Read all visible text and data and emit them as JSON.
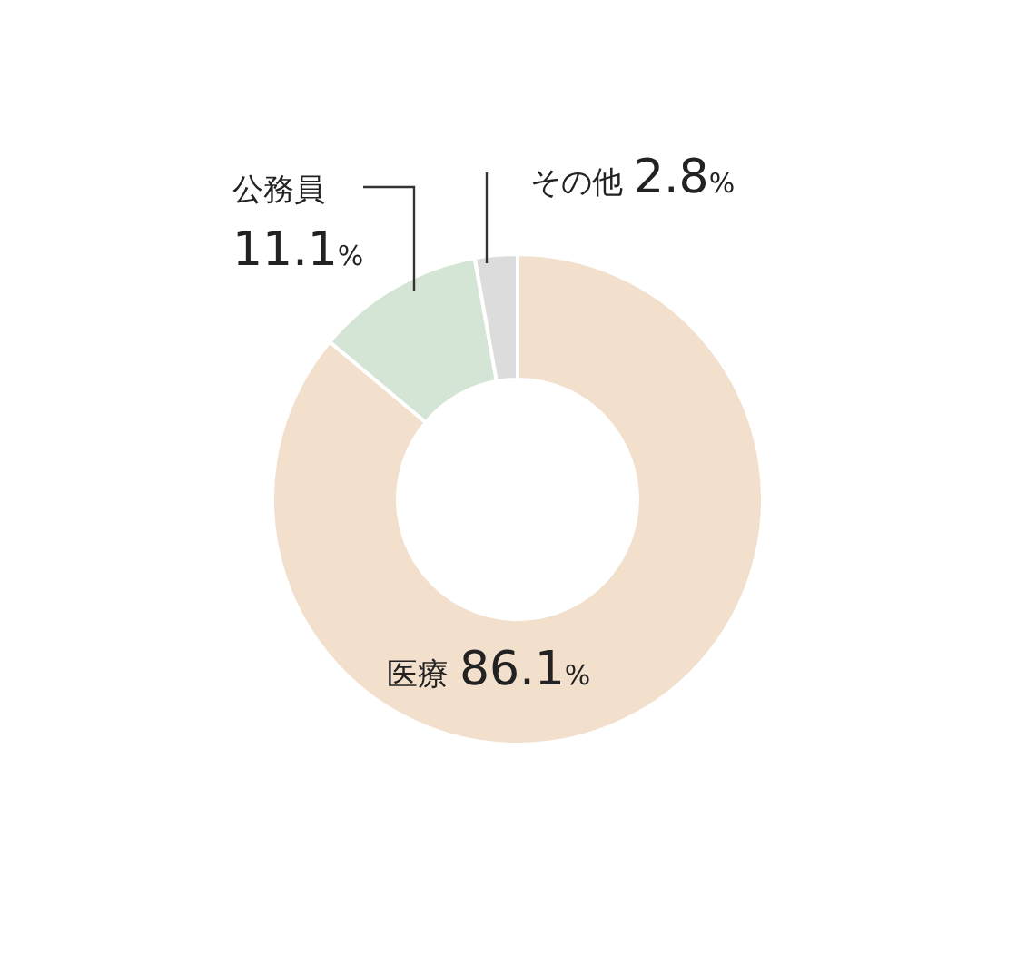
{
  "chart_data": {
    "type": "donut",
    "categories": [
      "医療",
      "公務員",
      "その他"
    ],
    "values": [
      86.1,
      11.1,
      2.8
    ],
    "colors": [
      "#f2dfcc",
      "#d5e5d5",
      "#dcdcdc"
    ],
    "value_labels": [
      "86.1%",
      "11.1%",
      "2.8%"
    ]
  }
}
